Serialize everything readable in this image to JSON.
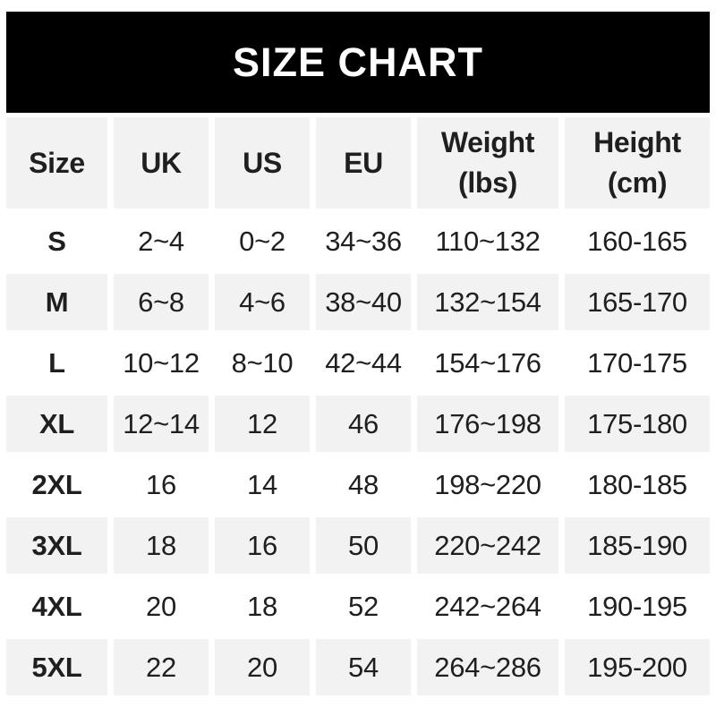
{
  "chart_data": {
    "type": "table",
    "title": "SIZE CHART",
    "columns": [
      {
        "key": "size",
        "label": "Size"
      },
      {
        "key": "uk",
        "label": "UK"
      },
      {
        "key": "us",
        "label": "US"
      },
      {
        "key": "eu",
        "label": "EU"
      },
      {
        "key": "weight",
        "label": "Weight",
        "sublabel": "(lbs)"
      },
      {
        "key": "height",
        "label": "Height",
        "sublabel": "(cm)"
      }
    ],
    "rows": [
      {
        "size": "S",
        "uk": "2~4",
        "us": "0~2",
        "eu": "34~36",
        "weight": "110~132",
        "height": "160-165"
      },
      {
        "size": "M",
        "uk": "6~8",
        "us": "4~6",
        "eu": "38~40",
        "weight": "132~154",
        "height": "165-170"
      },
      {
        "size": "L",
        "uk": "10~12",
        "us": "8~10",
        "eu": "42~44",
        "weight": "154~176",
        "height": "170-175"
      },
      {
        "size": "XL",
        "uk": "12~14",
        "us": "12",
        "eu": "46",
        "weight": "176~198",
        "height": "175-180"
      },
      {
        "size": "2XL",
        "uk": "16",
        "us": "14",
        "eu": "48",
        "weight": "198~220",
        "height": "180-185"
      },
      {
        "size": "3XL",
        "uk": "18",
        "us": "16",
        "eu": "50",
        "weight": "220~242",
        "height": "185-190"
      },
      {
        "size": "4XL",
        "uk": "20",
        "us": "18",
        "eu": "52",
        "weight": "242~264",
        "height": "190-195"
      },
      {
        "size": "5XL",
        "uk": "22",
        "us": "20",
        "eu": "54",
        "weight": "264~286",
        "height": "195-200"
      }
    ]
  },
  "colors": {
    "banner_background": "#000000",
    "banner_text": "#ffffff",
    "header_cell_background": "#f2f2f2",
    "row_alt_background": "#f2f2f2",
    "row_background": "#ffffff",
    "cell_text": "#1f1f1f",
    "page_background": "#ffffff"
  }
}
